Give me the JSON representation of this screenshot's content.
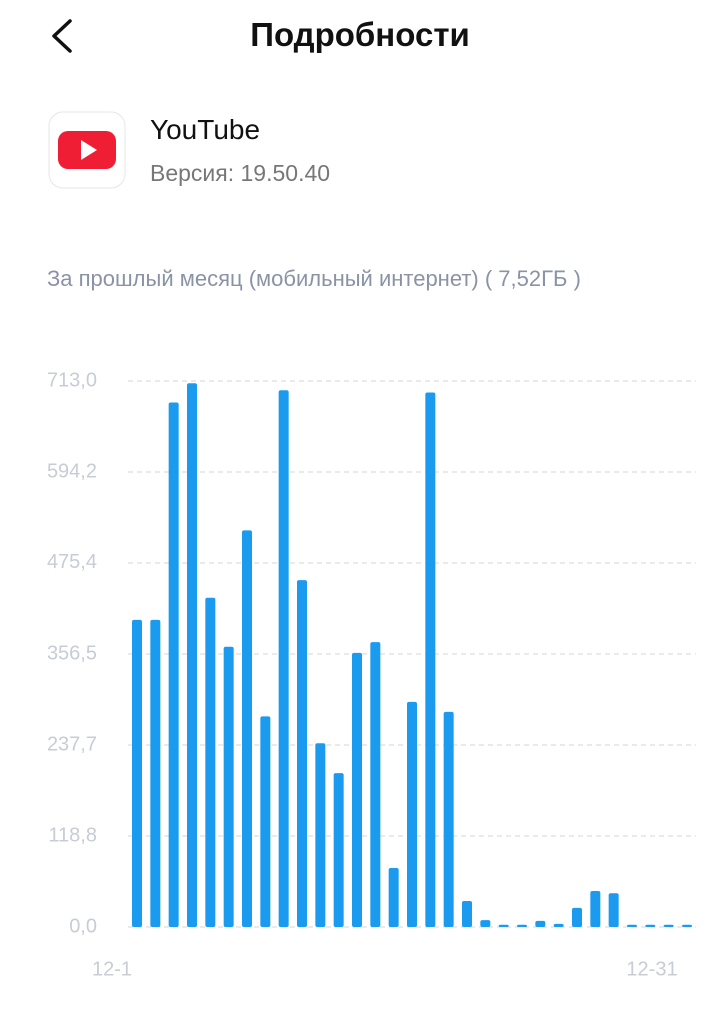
{
  "header": {
    "title": "Подробности"
  },
  "app": {
    "name": "YouTube",
    "version": "Версия: 19.50.40"
  },
  "chart_data": {
    "type": "bar",
    "title": "За прошлый месяц (мобильный интернет) ( 7,52ГБ )",
    "categories": [
      "12-1",
      null,
      null,
      null,
      null,
      null,
      null,
      null,
      null,
      null,
      null,
      null,
      null,
      null,
      null,
      null,
      null,
      null,
      null,
      null,
      null,
      null,
      null,
      null,
      null,
      null,
      null,
      null,
      null,
      null,
      "12-31"
    ],
    "values": [
      401,
      401,
      685,
      710,
      430,
      366,
      518,
      275,
      701,
      453,
      240,
      201,
      358,
      372,
      77,
      294,
      698,
      281,
      34,
      9,
      3,
      3,
      8,
      4,
      25,
      47,
      44,
      3,
      3,
      3,
      3
    ],
    "color": "#1a9bf0",
    "ylim": [
      0,
      713
    ],
    "yticks": [
      {
        "value": 0,
        "label": "0,0"
      },
      {
        "value": 118.8,
        "label": "118,8"
      },
      {
        "value": 237.7,
        "label": "237,7"
      },
      {
        "value": 356.5,
        "label": "356,5"
      },
      {
        "value": 475.4,
        "label": "475,4"
      },
      {
        "value": 594.2,
        "label": "594,2"
      },
      {
        "value": 713,
        "label": "713,0"
      }
    ],
    "grid": true
  }
}
